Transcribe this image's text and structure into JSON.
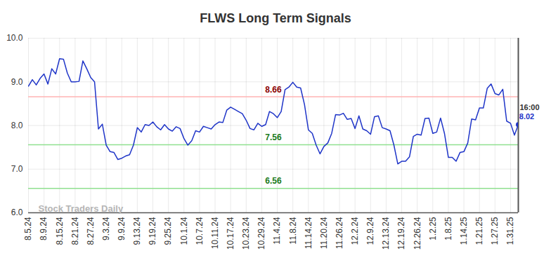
{
  "chart_data": {
    "type": "line",
    "title": "FLWS Long Term Signals",
    "categories": [
      "8.5.24",
      null,
      null,
      null,
      "8.9.24",
      null,
      null,
      null,
      "8.15.24",
      null,
      null,
      null,
      "8.21.24",
      null,
      null,
      null,
      "8.27.24",
      null,
      null,
      null,
      "9.3.24",
      null,
      null,
      null,
      "9.9.24",
      null,
      null,
      null,
      "9.13.24",
      null,
      null,
      null,
      "9.19.24",
      null,
      null,
      null,
      "9.25.24",
      null,
      null,
      null,
      "10.1.24",
      null,
      null,
      null,
      "10.7.24",
      null,
      null,
      null,
      "10.11.24",
      null,
      null,
      null,
      "10.17.24",
      null,
      null,
      null,
      "10.23.24",
      null,
      null,
      null,
      "10.29.24",
      null,
      null,
      null,
      "11.4.24",
      null,
      null,
      null,
      "11.8.24",
      null,
      null,
      null,
      "11.14.24",
      null,
      null,
      null,
      "11.20.24",
      null,
      null,
      null,
      "11.26.24",
      null,
      null,
      null,
      "12.2.24",
      null,
      null,
      null,
      "12.9.24",
      null,
      null,
      null,
      "12.13.24",
      null,
      null,
      null,
      "12.19.24",
      null,
      null,
      null,
      "12.26.24",
      null,
      null,
      null,
      "1.2.25",
      null,
      null,
      null,
      "1.8.25",
      null,
      null,
      null,
      "1.14.25",
      null,
      null,
      null,
      "1.21.25",
      null,
      null,
      null,
      "1.27.25",
      null,
      null,
      null,
      "1.31.25",
      null,
      null
    ],
    "values": [
      8.9,
      9.05,
      8.93,
      9.08,
      9.18,
      8.95,
      9.3,
      9.18,
      9.53,
      9.52,
      9.2,
      9.0,
      9.0,
      9.01,
      9.48,
      9.3,
      9.1,
      9.0,
      7.92,
      8.03,
      7.55,
      7.4,
      7.38,
      7.22,
      7.25,
      7.3,
      7.33,
      7.55,
      7.95,
      7.85,
      8.02,
      8.0,
      8.08,
      7.97,
      7.9,
      8.02,
      7.92,
      7.87,
      7.97,
      7.93,
      7.7,
      7.55,
      7.65,
      7.88,
      7.85,
      7.98,
      7.95,
      7.92,
      8.02,
      8.08,
      8.07,
      8.35,
      8.42,
      8.37,
      8.32,
      8.27,
      8.12,
      7.93,
      7.9,
      8.05,
      7.98,
      8.02,
      8.32,
      8.27,
      8.18,
      8.32,
      8.82,
      8.88,
      8.99,
      8.88,
      8.86,
      8.48,
      7.9,
      7.82,
      7.55,
      7.35,
      7.52,
      7.6,
      7.82,
      8.25,
      8.24,
      8.28,
      8.14,
      8.16,
      7.93,
      8.22,
      7.92,
      7.88,
      7.8,
      8.2,
      8.22,
      7.95,
      7.92,
      7.88,
      7.55,
      7.12,
      7.18,
      7.18,
      7.28,
      7.75,
      7.8,
      7.78,
      8.16,
      8.17,
      7.82,
      7.85,
      8.17,
      7.82,
      7.27,
      7.27,
      7.18,
      7.38,
      7.4,
      7.6,
      8.15,
      8.13,
      8.4,
      8.4,
      8.85,
      8.95,
      8.73,
      8.7,
      8.83,
      8.1,
      8.05,
      7.78,
      8.02
    ],
    "color": "#1f35c8",
    "marker": "last",
    "ylim": [
      6,
      10
    ],
    "yticks": [
      6,
      7,
      8,
      9,
      10
    ],
    "grid": true,
    "reference_lines": [
      {
        "value": 8.66,
        "color": "#ffb3b3",
        "label_color": "#8b0000"
      },
      {
        "value": 7.56,
        "color": "#90e090",
        "label_color": "#1a7a1a"
      },
      {
        "value": 6.56,
        "color": "#90e090",
        "label_color": "#1a7a1a"
      }
    ],
    "end_label": {
      "time": "16:00",
      "value": 8.02
    },
    "watermark": "Stock Traders Daily"
  }
}
